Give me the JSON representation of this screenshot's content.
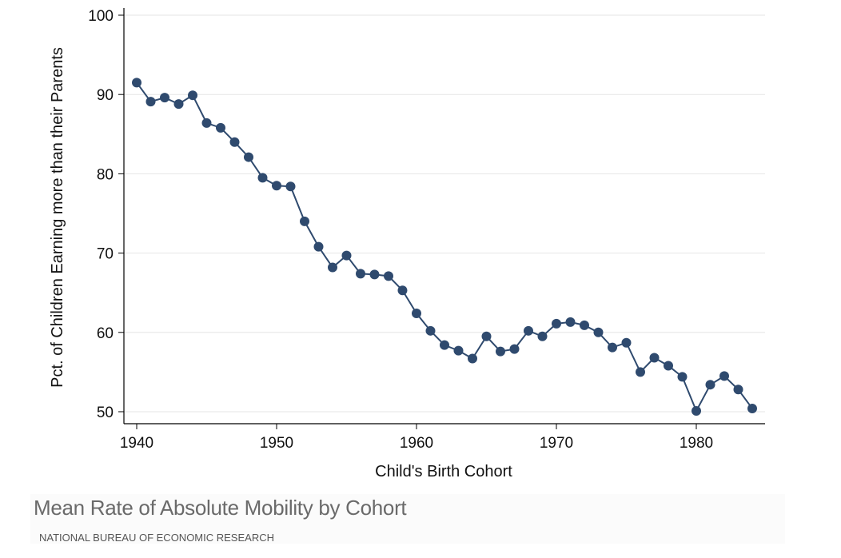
{
  "chart_data": {
    "type": "line",
    "title": "",
    "xlabel": "Child's Birth Cohort",
    "ylabel": "Pct. of Children Earning more than their Parents",
    "xlim": [
      1939,
      1985
    ],
    "ylim": [
      49,
      101
    ],
    "xticks": [
      1940,
      1950,
      1960,
      1970,
      1980
    ],
    "yticks": [
      50,
      60,
      70,
      80,
      90,
      100
    ],
    "grid": true,
    "series": [
      {
        "name": "Absolute mobility",
        "color": "#2f4a6e",
        "x": [
          1940,
          1941,
          1942,
          1943,
          1944,
          1945,
          1946,
          1947,
          1948,
          1949,
          1950,
          1951,
          1952,
          1953,
          1954,
          1955,
          1956,
          1957,
          1958,
          1959,
          1960,
          1961,
          1962,
          1963,
          1964,
          1965,
          1966,
          1967,
          1968,
          1969,
          1970,
          1971,
          1972,
          1973,
          1974,
          1975,
          1976,
          1977,
          1978,
          1979,
          1980,
          1981,
          1982,
          1983,
          1984
        ],
        "values": [
          91.5,
          89.1,
          89.6,
          88.8,
          89.9,
          86.4,
          85.8,
          84.0,
          82.1,
          79.5,
          78.5,
          78.4,
          74.0,
          70.8,
          68.2,
          69.7,
          67.4,
          67.3,
          67.1,
          65.3,
          62.4,
          60.2,
          58.4,
          57.7,
          56.7,
          59.5,
          57.6,
          57.9,
          60.2,
          59.5,
          61.1,
          61.3,
          60.9,
          60.0,
          58.1,
          58.7,
          55.0,
          56.8,
          55.8,
          54.4,
          50.1,
          53.4,
          54.5,
          52.8,
          50.4
        ]
      }
    ]
  },
  "caption": {
    "title": "Mean Rate of Absolute Mobility by Cohort",
    "source": "NATIONAL BUREAU OF ECONOMIC RESEARCH"
  }
}
